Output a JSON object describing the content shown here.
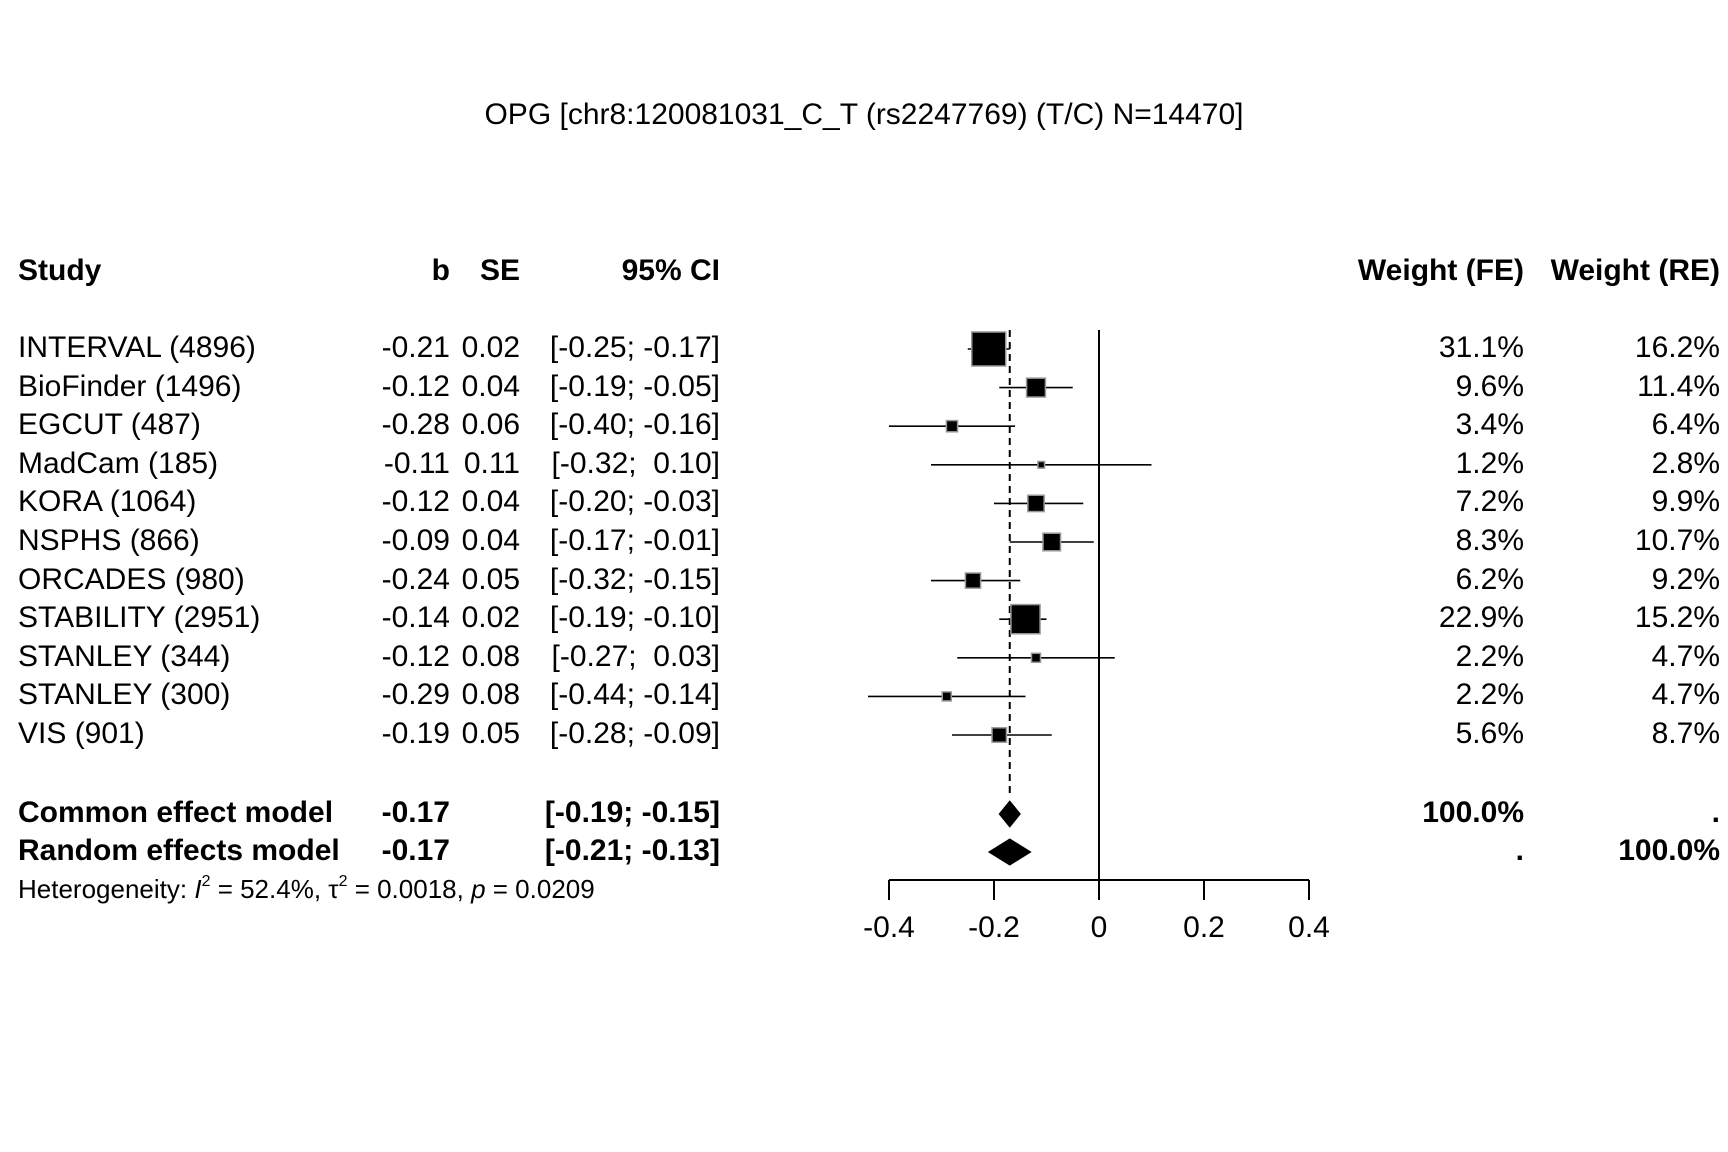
{
  "title": "OPG [chr8:120081031_C_T (rs2247769) (T/C) N=14470]",
  "headers": {
    "study": "Study",
    "b": "b",
    "se": "SE",
    "ci": "95% CI",
    "weight_fe": "Weight (FE)",
    "weight_re": "Weight (RE)"
  },
  "rows": [
    {
      "study": "INTERVAL (4896)",
      "b": "-0.21",
      "se": "0.02",
      "ci": "[-0.25; -0.17]",
      "wfe": "31.1%",
      "wre": "16.2%"
    },
    {
      "study": "BioFinder (1496)",
      "b": "-0.12",
      "se": "0.04",
      "ci": "[-0.19; -0.05]",
      "wfe": "9.6%",
      "wre": "11.4%"
    },
    {
      "study": "EGCUT (487)",
      "b": "-0.28",
      "se": "0.06",
      "ci": "[-0.40; -0.16]",
      "wfe": "3.4%",
      "wre": "6.4%"
    },
    {
      "study": "MadCam (185)",
      "b": "-0.11",
      "se": "0.11",
      "ci": "[-0.32;  0.10]",
      "wfe": "1.2%",
      "wre": "2.8%"
    },
    {
      "study": "KORA (1064)",
      "b": "-0.12",
      "se": "0.04",
      "ci": "[-0.20; -0.03]",
      "wfe": "7.2%",
      "wre": "9.9%"
    },
    {
      "study": "NSPHS (866)",
      "b": "-0.09",
      "se": "0.04",
      "ci": "[-0.17; -0.01]",
      "wfe": "8.3%",
      "wre": "10.7%"
    },
    {
      "study": "ORCADES (980)",
      "b": "-0.24",
      "se": "0.05",
      "ci": "[-0.32; -0.15]",
      "wfe": "6.2%",
      "wre": "9.2%"
    },
    {
      "study": "STABILITY (2951)",
      "b": "-0.14",
      "se": "0.02",
      "ci": "[-0.19; -0.10]",
      "wfe": "22.9%",
      "wre": "15.2%"
    },
    {
      "study": "STANLEY (344)",
      "b": "-0.12",
      "se": "0.08",
      "ci": "[-0.27;  0.03]",
      "wfe": "2.2%",
      "wre": "4.7%"
    },
    {
      "study": "STANLEY (300)",
      "b": "-0.29",
      "se": "0.08",
      "ci": "[-0.44; -0.14]",
      "wfe": "2.2%",
      "wre": "4.7%"
    },
    {
      "study": "VIS (901)",
      "b": "-0.19",
      "se": "0.05",
      "ci": "[-0.28; -0.09]",
      "wfe": "5.6%",
      "wre": "8.7%"
    }
  ],
  "models": [
    {
      "label": "Common effect model",
      "b": "-0.17",
      "ci": "[-0.19; -0.15]",
      "wfe": "100.0%",
      "wre": "."
    },
    {
      "label": "Random effects model",
      "b": "-0.17",
      "ci": "[-0.21; -0.13]",
      "wfe": ".",
      "wre": "100.0%"
    }
  ],
  "heterogeneity": {
    "prefix": "Heterogeneity: ",
    "i2_symbol": "I",
    "i2_value": " = 52.4%, ",
    "tau2_symbol": "τ",
    "tau2_value": " = 0.0018, ",
    "p_symbol": "p",
    "p_value": " = 0.0209",
    "sup": "2"
  },
  "chart_data": {
    "type": "forest",
    "xlim": [
      -0.4,
      0.4
    ],
    "xticks": [
      -0.4,
      -0.2,
      0,
      0.2,
      0.4
    ],
    "xtick_labels": [
      "-0.4",
      "-0.2",
      "0",
      "0.2",
      "0.4"
    ],
    "reference_line": 0,
    "studies": [
      {
        "name": "INTERVAL (4896)",
        "estimate": -0.21,
        "lower": -0.25,
        "upper": -0.17,
        "weight_fe": 31.1
      },
      {
        "name": "BioFinder (1496)",
        "estimate": -0.12,
        "lower": -0.19,
        "upper": -0.05,
        "weight_fe": 9.6
      },
      {
        "name": "EGCUT (487)",
        "estimate": -0.28,
        "lower": -0.4,
        "upper": -0.16,
        "weight_fe": 3.4
      },
      {
        "name": "MadCam (185)",
        "estimate": -0.11,
        "lower": -0.32,
        "upper": 0.1,
        "weight_fe": 1.2
      },
      {
        "name": "KORA (1064)",
        "estimate": -0.12,
        "lower": -0.2,
        "upper": -0.03,
        "weight_fe": 7.2
      },
      {
        "name": "NSPHS (866)",
        "estimate": -0.09,
        "lower": -0.17,
        "upper": -0.01,
        "weight_fe": 8.3
      },
      {
        "name": "ORCADES (980)",
        "estimate": -0.24,
        "lower": -0.32,
        "upper": -0.15,
        "weight_fe": 6.2
      },
      {
        "name": "STABILITY (2951)",
        "estimate": -0.14,
        "lower": -0.19,
        "upper": -0.1,
        "weight_fe": 22.9
      },
      {
        "name": "STANLEY (344)",
        "estimate": -0.12,
        "lower": -0.27,
        "upper": 0.03,
        "weight_fe": 2.2
      },
      {
        "name": "STANLEY (300)",
        "estimate": -0.29,
        "lower": -0.44,
        "upper": -0.14,
        "weight_fe": 2.2
      },
      {
        "name": "VIS (901)",
        "estimate": -0.19,
        "lower": -0.28,
        "upper": -0.09,
        "weight_fe": 5.6
      }
    ],
    "summary": [
      {
        "name": "Common effect model",
        "estimate": -0.17,
        "lower": -0.19,
        "upper": -0.15
      },
      {
        "name": "Random effects model",
        "estimate": -0.17,
        "lower": -0.21,
        "upper": -0.13
      }
    ],
    "common_effect_line": -0.17
  }
}
